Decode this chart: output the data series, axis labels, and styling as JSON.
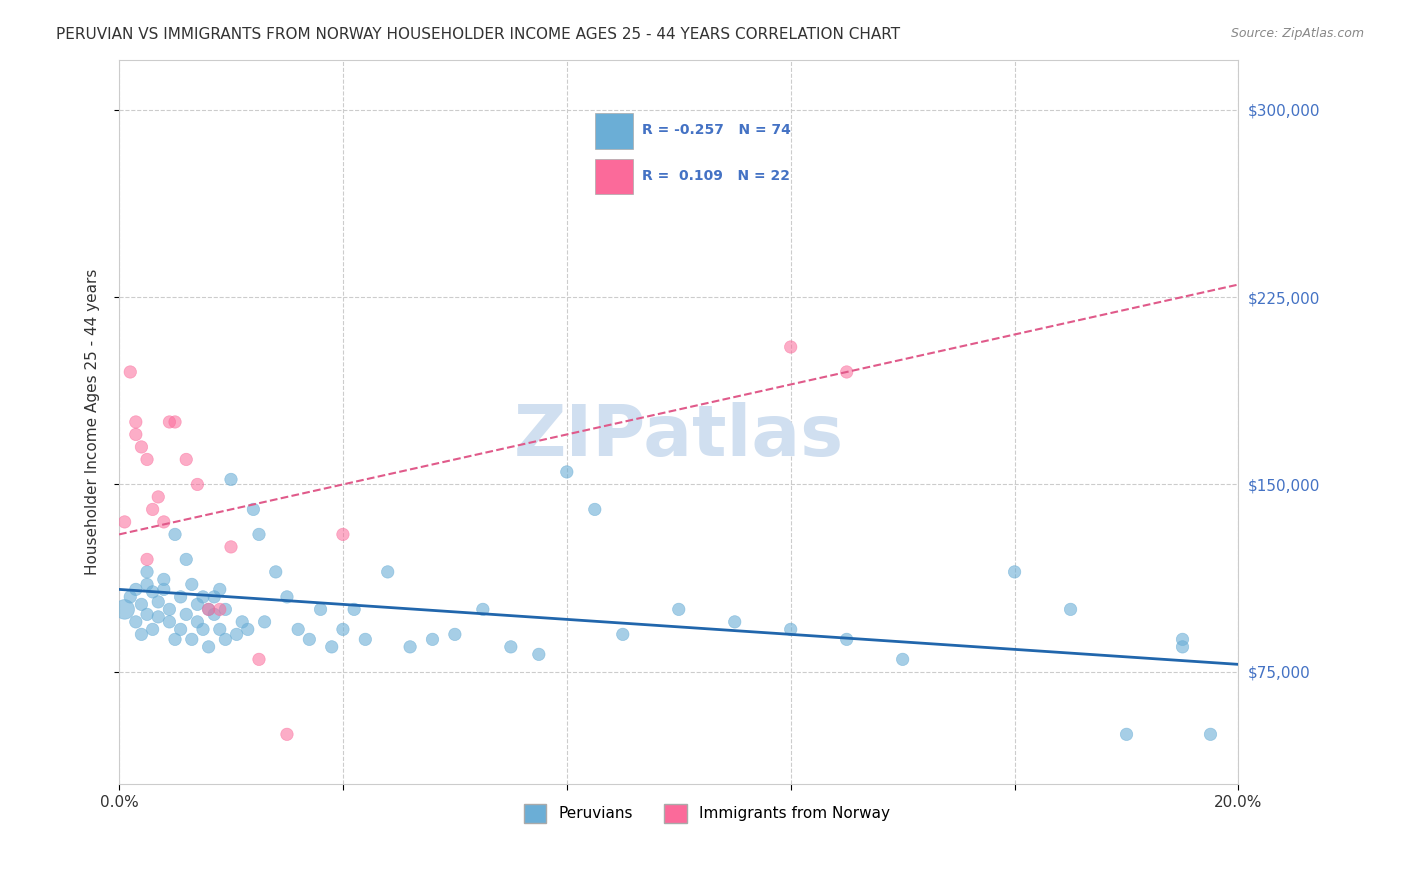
{
  "title": "PERUVIAN VS IMMIGRANTS FROM NORWAY HOUSEHOLDER INCOME AGES 25 - 44 YEARS CORRELATION CHART",
  "source": "Source: ZipAtlas.com",
  "xlabel": "",
  "ylabel": "Householder Income Ages 25 - 44 years",
  "xlim": [
    0.0,
    0.2
  ],
  "ylim": [
    30000,
    320000
  ],
  "yticks": [
    75000,
    150000,
    225000,
    300000
  ],
  "ytick_labels": [
    "$75,000",
    "$150,000",
    "$225,000",
    "$300,000"
  ],
  "xticks": [
    0.0,
    0.04,
    0.08,
    0.12,
    0.16,
    0.2
  ],
  "xtick_labels": [
    "0.0%",
    "",
    "",
    "",
    "",
    "20.0%"
  ],
  "legend_r1": "R = -0.257",
  "legend_n1": "N = 74",
  "legend_r2": "R =  0.109",
  "legend_n2": "N = 22",
  "blue_color": "#6baed6",
  "pink_color": "#fb6a9a",
  "blue_line_color": "#2166ac",
  "pink_line_color": "#e05a8a",
  "watermark": "ZIPatlas",
  "blue_scatter_x": [
    0.001,
    0.002,
    0.003,
    0.003,
    0.004,
    0.004,
    0.005,
    0.005,
    0.005,
    0.006,
    0.006,
    0.007,
    0.007,
    0.008,
    0.008,
    0.009,
    0.009,
    0.01,
    0.01,
    0.011,
    0.011,
    0.012,
    0.012,
    0.013,
    0.013,
    0.014,
    0.014,
    0.015,
    0.015,
    0.016,
    0.016,
    0.017,
    0.017,
    0.018,
    0.018,
    0.019,
    0.019,
    0.02,
    0.021,
    0.022,
    0.023,
    0.024,
    0.025,
    0.026,
    0.028,
    0.03,
    0.032,
    0.034,
    0.036,
    0.038,
    0.04,
    0.042,
    0.044,
    0.048,
    0.052,
    0.056,
    0.06,
    0.065,
    0.07,
    0.075,
    0.08,
    0.085,
    0.09,
    0.1,
    0.11,
    0.12,
    0.13,
    0.14,
    0.16,
    0.17,
    0.18,
    0.19,
    0.19,
    0.195
  ],
  "blue_scatter_y": [
    100000,
    105000,
    95000,
    108000,
    90000,
    102000,
    110000,
    98000,
    115000,
    107000,
    92000,
    103000,
    97000,
    108000,
    112000,
    95000,
    100000,
    130000,
    88000,
    105000,
    92000,
    120000,
    98000,
    110000,
    88000,
    102000,
    95000,
    105000,
    92000,
    100000,
    85000,
    98000,
    105000,
    92000,
    108000,
    88000,
    100000,
    152000,
    90000,
    95000,
    92000,
    140000,
    130000,
    95000,
    115000,
    105000,
    92000,
    88000,
    100000,
    85000,
    92000,
    100000,
    88000,
    115000,
    85000,
    88000,
    90000,
    100000,
    85000,
    82000,
    155000,
    140000,
    90000,
    100000,
    95000,
    92000,
    88000,
    80000,
    115000,
    100000,
    50000,
    88000,
    85000,
    50000
  ],
  "blue_scatter_size": [
    200,
    80,
    80,
    80,
    80,
    80,
    80,
    80,
    80,
    80,
    80,
    80,
    80,
    80,
    80,
    80,
    80,
    80,
    80,
    80,
    80,
    80,
    80,
    80,
    80,
    80,
    80,
    80,
    80,
    80,
    80,
    80,
    80,
    80,
    80,
    80,
    80,
    80,
    80,
    80,
    80,
    80,
    80,
    80,
    80,
    80,
    80,
    80,
    80,
    80,
    80,
    80,
    80,
    80,
    80,
    80,
    80,
    80,
    80,
    80,
    80,
    80,
    80,
    80,
    80,
    80,
    80,
    80,
    80,
    80,
    80,
    80,
    80,
    80
  ],
  "pink_scatter_x": [
    0.001,
    0.002,
    0.003,
    0.003,
    0.004,
    0.005,
    0.005,
    0.006,
    0.007,
    0.008,
    0.009,
    0.01,
    0.012,
    0.014,
    0.016,
    0.018,
    0.02,
    0.025,
    0.03,
    0.04,
    0.12,
    0.13
  ],
  "pink_scatter_y": [
    135000,
    195000,
    175000,
    170000,
    165000,
    160000,
    120000,
    140000,
    145000,
    135000,
    175000,
    175000,
    160000,
    150000,
    100000,
    100000,
    125000,
    80000,
    50000,
    130000,
    205000,
    195000
  ],
  "pink_scatter_size": [
    80,
    80,
    80,
    80,
    80,
    80,
    80,
    80,
    80,
    80,
    80,
    80,
    80,
    80,
    80,
    80,
    80,
    80,
    80,
    80,
    80,
    80
  ],
  "blue_trend_x": [
    0.0,
    0.2
  ],
  "blue_trend_y": [
    108000,
    78000
  ],
  "pink_trend_x": [
    0.0,
    0.2
  ],
  "pink_trend_y": [
    130000,
    230000
  ],
  "grid_color": "#cccccc",
  "title_color": "#333333",
  "axis_label_color": "#333333",
  "right_tick_color": "#4472c4",
  "watermark_color": "#d0dff0",
  "background_color": "#ffffff"
}
